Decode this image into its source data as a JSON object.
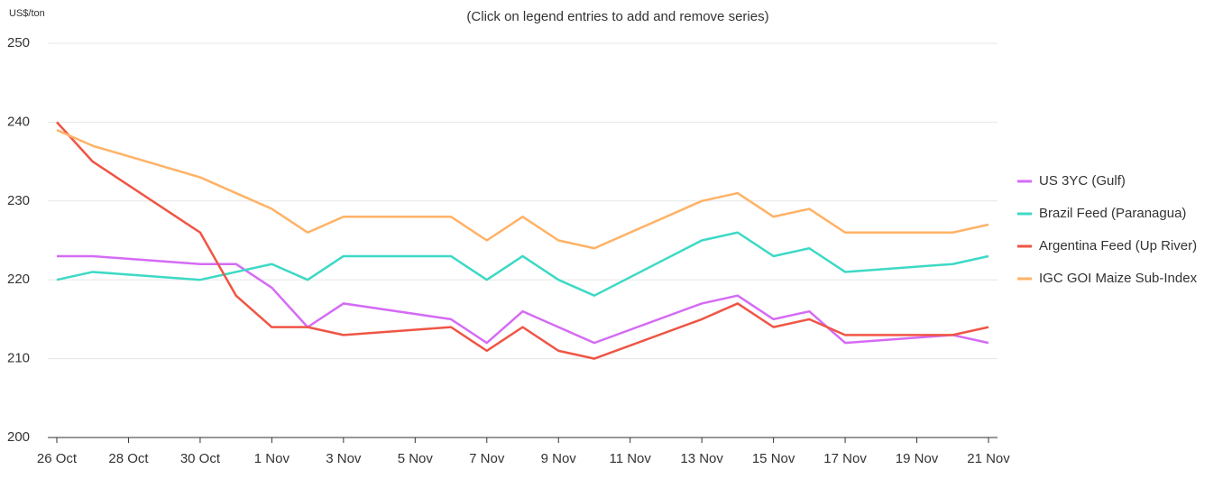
{
  "chart_data": {
    "type": "line",
    "subtitle": "(Click on legend entries to add and remove series)",
    "y_label": "US$/ton",
    "x": [
      "26 Oct",
      "27 Oct",
      "30 Oct",
      "31 Oct",
      "1 Nov",
      "2 Nov",
      "3 Nov",
      "6 Nov",
      "7 Nov",
      "8 Nov",
      "9 Nov",
      "10 Nov",
      "13 Nov",
      "14 Nov",
      "15 Nov",
      "16 Nov",
      "17 Nov",
      "20 Nov",
      "21 Nov"
    ],
    "xlim": [
      "26 Oct",
      "21 Nov"
    ],
    "xticks": [
      "26 Oct",
      "28 Oct",
      "30 Oct",
      "1 Nov",
      "3 Nov",
      "5 Nov",
      "7 Nov",
      "9 Nov",
      "11 Nov",
      "13 Nov",
      "15 Nov",
      "17 Nov",
      "19 Nov",
      "21 Nov"
    ],
    "ylim": [
      200,
      250
    ],
    "yticks": [
      200,
      210,
      220,
      230,
      240,
      250
    ],
    "grid": true,
    "legend": "right",
    "series": [
      {
        "name": "US 3YC (Gulf)",
        "color": "#d56bf5",
        "values": [
          223,
          223,
          222,
          222,
          219,
          214,
          217,
          215,
          212,
          216,
          214,
          212,
          217,
          218,
          215,
          216,
          212,
          213,
          212
        ]
      },
      {
        "name": "Brazil Feed (Paranagua)",
        "color": "#3dd9c5",
        "values": [
          220,
          221,
          220,
          221,
          222,
          220,
          223,
          223,
          220,
          223,
          220,
          218,
          225,
          226,
          223,
          224,
          221,
          222,
          223
        ]
      },
      {
        "name": "Argentina Feed (Up River)",
        "color": "#ef5545",
        "values": [
          240,
          235,
          226,
          218,
          214,
          214,
          213,
          214,
          211,
          214,
          211,
          210,
          215,
          217,
          214,
          215,
          213,
          213,
          214
        ]
      },
      {
        "name": "IGC GOI Maize Sub-Index",
        "color": "#ffb266",
        "values": [
          239,
          237,
          233,
          231,
          229,
          226,
          228,
          228,
          225,
          228,
          225,
          224,
          230,
          231,
          228,
          229,
          226,
          226,
          227
        ]
      }
    ]
  }
}
